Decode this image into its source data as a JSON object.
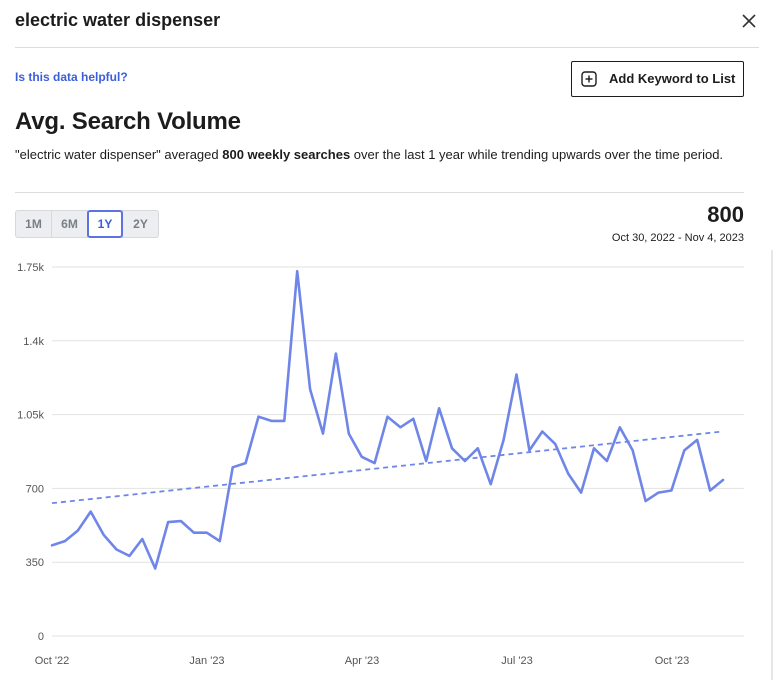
{
  "header": {
    "title": "electric water dispenser"
  },
  "helpful_link": "Is this data helpful?",
  "add_button_label": "Add Keyword to List",
  "section_title": "Avg. Search Volume",
  "summary": {
    "pre": "\"electric water dispenser\" averaged ",
    "bold": "800 weekly searches",
    "post": " over the last 1 year while trending upwards over the time period."
  },
  "ranges": [
    "1M",
    "6M",
    "1Y",
    "2Y"
  ],
  "active_range": "1Y",
  "stat": {
    "value": "800",
    "date_range": "Oct 30, 2022 - Nov 4, 2023"
  },
  "colors": {
    "accent": "#6f86e8",
    "link": "#3b5fd9"
  },
  "icons": {
    "close": "close-icon",
    "add": "plus-square-icon"
  },
  "chart_data": {
    "type": "line",
    "y_ticks": [
      "0",
      "350",
      "700",
      "1.05k",
      "1.4k",
      "1.75k"
    ],
    "y_tick_values": [
      0,
      350,
      700,
      1050,
      1400,
      1750
    ],
    "ylim": [
      0,
      1750
    ],
    "x_ticks": [
      "Oct '22",
      "Jan '23",
      "Apr '23",
      "Jul '23",
      "Oct '23"
    ],
    "grid": true,
    "series": [
      {
        "values": [
          430,
          450,
          500,
          590,
          480,
          410,
          380,
          460,
          320,
          540,
          545,
          490,
          490,
          450,
          800,
          820,
          1040,
          1020,
          1020,
          1730,
          1170,
          960,
          1340,
          960,
          850,
          820,
          1040,
          990,
          1030,
          830,
          1080,
          890,
          830,
          890,
          720,
          930,
          1240,
          880,
          970,
          910,
          770,
          680,
          890,
          830,
          990,
          880,
          640,
          680,
          690,
          880,
          930,
          690,
          740
        ]
      }
    ],
    "trendline": {
      "start": 630,
      "end": 970,
      "style": "dashed"
    }
  }
}
